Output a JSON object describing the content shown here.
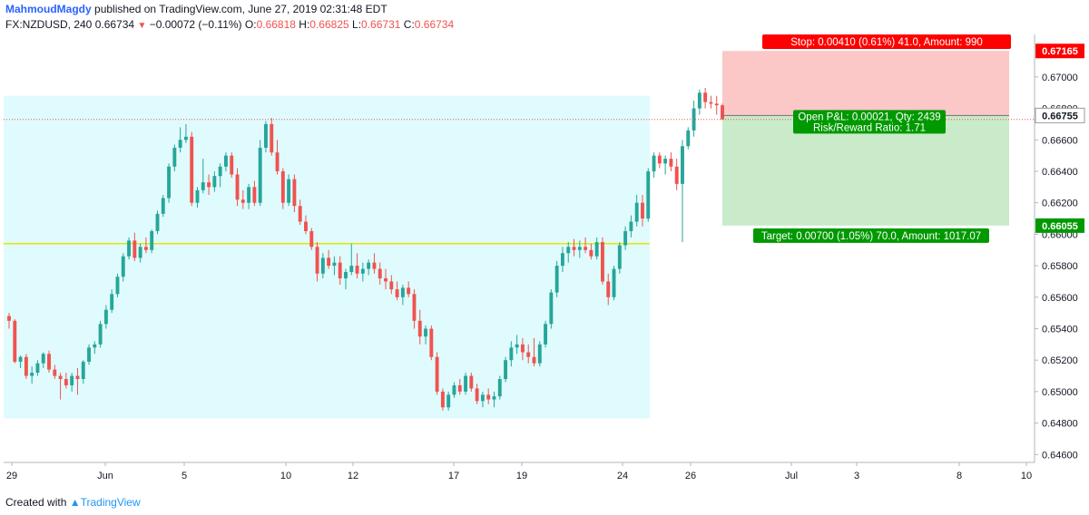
{
  "header": {
    "author": "MahmoudMagdy",
    "published_text": "published on TradingView.com, June 27, 2019 02:31:48 EDT",
    "symbol": "FX:NZDUSD, 240",
    "last_price": "0.66734",
    "change": "−0.00072 (−0.11%)",
    "change_icon": "down-triangle-icon",
    "open_label": "O:",
    "open": "0.66818",
    "high_label": "H:",
    "high": "0.66825",
    "low_label": "L:",
    "low": "0.66731",
    "close_label": "C:",
    "close": "0.66734"
  },
  "footer": {
    "created_with": "Created with",
    "brand": "TradingView",
    "brand_icon": "tradingview-logo-icon"
  },
  "colors": {
    "up": "#26a69a",
    "down": "#ef5350",
    "range_fill": "#e0fbfd",
    "support_line": "#e6e600",
    "stop_zone": "#fbc7c7",
    "target_zone": "#c9ebc9",
    "stop_label": "#ff0000",
    "target_label": "#009900"
  },
  "chart_data": {
    "type": "candlestick",
    "title": "",
    "xlabel": "",
    "ylabel": "",
    "timeframe": "240",
    "ylim": [
      0.6455,
      0.6727
    ],
    "y_ticks": [
      "0.67000",
      "0.66800",
      "0.66600",
      "0.66400",
      "0.66200",
      "0.66000",
      "0.65800",
      "0.65600",
      "0.65400",
      "0.65200",
      "0.65000",
      "0.64800",
      "0.64600"
    ],
    "x_ticks": [
      "29",
      "Jun",
      "5",
      "10",
      "12",
      "17",
      "19",
      "24",
      "26",
      "Jul",
      "3",
      "8",
      "10"
    ],
    "grid": false,
    "candles_ohlc": [
      [
        0.6548,
        0.655,
        0.654,
        0.6545
      ],
      [
        0.6545,
        0.6546,
        0.6518,
        0.6519
      ],
      [
        0.6519,
        0.6523,
        0.6515,
        0.6522
      ],
      [
        0.6522,
        0.6524,
        0.6508,
        0.651
      ],
      [
        0.651,
        0.6516,
        0.6505,
        0.6512
      ],
      [
        0.6512,
        0.652,
        0.651,
        0.6518
      ],
      [
        0.6518,
        0.6525,
        0.6515,
        0.6524
      ],
      [
        0.6524,
        0.6526,
        0.6512,
        0.6514
      ],
      [
        0.6514,
        0.6517,
        0.6508,
        0.651
      ],
      [
        0.651,
        0.6512,
        0.6495,
        0.6508
      ],
      [
        0.6508,
        0.6512,
        0.6502,
        0.6504
      ],
      [
        0.6504,
        0.6512,
        0.65,
        0.651
      ],
      [
        0.651,
        0.6515,
        0.6498,
        0.6508
      ],
      [
        0.6508,
        0.652,
        0.6505,
        0.6519
      ],
      [
        0.6519,
        0.653,
        0.6517,
        0.6528
      ],
      [
        0.6528,
        0.6532,
        0.6524,
        0.653
      ],
      [
        0.653,
        0.6545,
        0.6528,
        0.6543
      ],
      [
        0.6543,
        0.6555,
        0.654,
        0.6552
      ],
      [
        0.6552,
        0.6565,
        0.655,
        0.6562
      ],
      [
        0.6562,
        0.6575,
        0.656,
        0.6573
      ],
      [
        0.6573,
        0.6588,
        0.657,
        0.6586
      ],
      [
        0.6586,
        0.6598,
        0.6584,
        0.6596
      ],
      [
        0.6596,
        0.6601,
        0.6583,
        0.6585
      ],
      [
        0.6585,
        0.6594,
        0.6582,
        0.6592
      ],
      [
        0.6592,
        0.6598,
        0.6588,
        0.659
      ],
      [
        0.659,
        0.6603,
        0.6588,
        0.6602
      ],
      [
        0.6602,
        0.6615,
        0.66,
        0.6613
      ],
      [
        0.6613,
        0.6625,
        0.6611,
        0.6623
      ],
      [
        0.6623,
        0.6645,
        0.662,
        0.6643
      ],
      [
        0.6643,
        0.6657,
        0.664,
        0.6655
      ],
      [
        0.6655,
        0.6668,
        0.6652,
        0.666
      ],
      [
        0.666,
        0.667,
        0.6658,
        0.6662
      ],
      [
        0.6662,
        0.6665,
        0.6618,
        0.662
      ],
      [
        0.662,
        0.663,
        0.6617,
        0.6628
      ],
      [
        0.6628,
        0.6648,
        0.6626,
        0.6633
      ],
      [
        0.6633,
        0.6638,
        0.6625,
        0.663
      ],
      [
        0.663,
        0.664,
        0.6627,
        0.6637
      ],
      [
        0.6637,
        0.6645,
        0.663,
        0.6643
      ],
      [
        0.6643,
        0.6652,
        0.664,
        0.665
      ],
      [
        0.665,
        0.6652,
        0.6636,
        0.6638
      ],
      [
        0.6638,
        0.6642,
        0.6618,
        0.6622
      ],
      [
        0.6622,
        0.6628,
        0.6616,
        0.662
      ],
      [
        0.662,
        0.6632,
        0.6616,
        0.663
      ],
      [
        0.663,
        0.6634,
        0.6618,
        0.662
      ],
      [
        0.662,
        0.666,
        0.6618,
        0.6655
      ],
      [
        0.6655,
        0.6672,
        0.6652,
        0.667
      ],
      [
        0.667,
        0.6674,
        0.665,
        0.6652
      ],
      [
        0.6652,
        0.666,
        0.6638,
        0.664
      ],
      [
        0.664,
        0.6642,
        0.6616,
        0.662
      ],
      [
        0.662,
        0.6638,
        0.6618,
        0.6635
      ],
      [
        0.6635,
        0.6638,
        0.6614,
        0.6618
      ],
      [
        0.6618,
        0.6622,
        0.6606,
        0.6608
      ],
      [
        0.6608,
        0.6612,
        0.66,
        0.6602
      ],
      [
        0.6602,
        0.6604,
        0.659,
        0.6592
      ],
      [
        0.6592,
        0.6595,
        0.657,
        0.6575
      ],
      [
        0.6575,
        0.6588,
        0.6572,
        0.6585
      ],
      [
        0.6585,
        0.659,
        0.6578,
        0.658
      ],
      [
        0.658,
        0.6586,
        0.6574,
        0.6582
      ],
      [
        0.6582,
        0.6586,
        0.6568,
        0.6572
      ],
      [
        0.6572,
        0.6578,
        0.6565,
        0.6576
      ],
      [
        0.6576,
        0.6594,
        0.6574,
        0.658
      ],
      [
        0.658,
        0.6588,
        0.6572,
        0.6575
      ],
      [
        0.6575,
        0.6582,
        0.657,
        0.6578
      ],
      [
        0.6578,
        0.6584,
        0.6574,
        0.6582
      ],
      [
        0.6582,
        0.6588,
        0.6575,
        0.6578
      ],
      [
        0.6578,
        0.6582,
        0.6568,
        0.6572
      ],
      [
        0.6572,
        0.6578,
        0.6565,
        0.657
      ],
      [
        0.657,
        0.6574,
        0.6562,
        0.6565
      ],
      [
        0.6565,
        0.657,
        0.6558,
        0.656
      ],
      [
        0.656,
        0.6568,
        0.6555,
        0.6566
      ],
      [
        0.6566,
        0.657,
        0.656,
        0.6562
      ],
      [
        0.6562,
        0.6565,
        0.654,
        0.6545
      ],
      [
        0.6545,
        0.6552,
        0.653,
        0.6535
      ],
      [
        0.6535,
        0.6542,
        0.653,
        0.654
      ],
      [
        0.654,
        0.6542,
        0.652,
        0.6522
      ],
      [
        0.6522,
        0.6525,
        0.6498,
        0.65
      ],
      [
        0.65,
        0.6502,
        0.6488,
        0.649
      ],
      [
        0.649,
        0.65,
        0.6488,
        0.6498
      ],
      [
        0.6498,
        0.6506,
        0.6496,
        0.6504
      ],
      [
        0.6504,
        0.6508,
        0.6498,
        0.65
      ],
      [
        0.65,
        0.6512,
        0.6498,
        0.651
      ],
      [
        0.651,
        0.6512,
        0.65,
        0.6502
      ],
      [
        0.6502,
        0.6505,
        0.6492,
        0.6494
      ],
      [
        0.6494,
        0.65,
        0.649,
        0.6498
      ],
      [
        0.6498,
        0.6502,
        0.6492,
        0.6495
      ],
      [
        0.6495,
        0.65,
        0.649,
        0.6497
      ],
      [
        0.6497,
        0.651,
        0.6495,
        0.6508
      ],
      [
        0.6508,
        0.6522,
        0.6506,
        0.652
      ],
      [
        0.652,
        0.6532,
        0.6516,
        0.6528
      ],
      [
        0.6528,
        0.6536,
        0.6524,
        0.653
      ],
      [
        0.653,
        0.6534,
        0.652,
        0.6525
      ],
      [
        0.6525,
        0.653,
        0.6518,
        0.6522
      ],
      [
        0.6522,
        0.6534,
        0.6516,
        0.6518
      ],
      [
        0.6518,
        0.6532,
        0.6516,
        0.653
      ],
      [
        0.653,
        0.6545,
        0.6528,
        0.6543
      ],
      [
        0.6543,
        0.6565,
        0.654,
        0.6563
      ],
      [
        0.6563,
        0.6583,
        0.656,
        0.658
      ],
      [
        0.658,
        0.6592,
        0.6576,
        0.6588
      ],
      [
        0.6588,
        0.6595,
        0.6582,
        0.6592
      ],
      [
        0.6592,
        0.6597,
        0.6586,
        0.659
      ],
      [
        0.659,
        0.6596,
        0.6585,
        0.6592
      ],
      [
        0.6592,
        0.6598,
        0.6588,
        0.659
      ],
      [
        0.659,
        0.6594,
        0.6584,
        0.6586
      ],
      [
        0.6586,
        0.6598,
        0.6584,
        0.6595
      ],
      [
        0.6595,
        0.6598,
        0.6568,
        0.657
      ],
      [
        0.657,
        0.6575,
        0.6555,
        0.656
      ],
      [
        0.656,
        0.658,
        0.6558,
        0.6578
      ],
      [
        0.6578,
        0.6595,
        0.6575,
        0.6593
      ],
      [
        0.6593,
        0.6605,
        0.659,
        0.6602
      ],
      [
        0.6602,
        0.6612,
        0.6598,
        0.6608
      ],
      [
        0.6608,
        0.6625,
        0.6605,
        0.662
      ],
      [
        0.662,
        0.6625,
        0.6605,
        0.661
      ],
      [
        0.661,
        0.6642,
        0.6608,
        0.664
      ],
      [
        0.664,
        0.6652,
        0.6636,
        0.665
      ],
      [
        0.665,
        0.6652,
        0.6642,
        0.6645
      ],
      [
        0.6645,
        0.665,
        0.6638,
        0.6648
      ],
      [
        0.6648,
        0.6652,
        0.664,
        0.6643
      ],
      [
        0.6643,
        0.6648,
        0.6628,
        0.6632
      ],
      [
        0.6632,
        0.666,
        0.6595,
        0.6656
      ],
      [
        0.6656,
        0.6668,
        0.6654,
        0.6666
      ],
      [
        0.6666,
        0.6685,
        0.6662,
        0.668
      ],
      [
        0.668,
        0.6692,
        0.6676,
        0.669
      ],
      [
        0.669,
        0.6693,
        0.668,
        0.6684
      ],
      [
        0.6684,
        0.6688,
        0.668,
        0.6683
      ],
      [
        0.6683,
        0.6688,
        0.6676,
        0.6682
      ],
      [
        0.6682,
        0.6683,
        0.6673,
        0.6673
      ]
    ],
    "range_box": {
      "price_top": 0.6688,
      "price_bottom": 0.6483
    },
    "support_level": 0.6594,
    "position_tool": {
      "entry": 0.66755,
      "stop": 0.67165,
      "target": 0.66055,
      "stop_label": "Stop: 0.00410 (0.61%) 41.0, Amount: 990",
      "pnl_label": "Open P&L: 0.00021, Qty: 2439",
      "rr_label": "Risk/Reward Ratio: 1.71",
      "target_label": "Target: 0.00700 (1.05%) 70.0, Amount: 1017.07"
    },
    "price_labels": [
      "0.67165",
      "0.66755",
      "0.66055"
    ]
  }
}
